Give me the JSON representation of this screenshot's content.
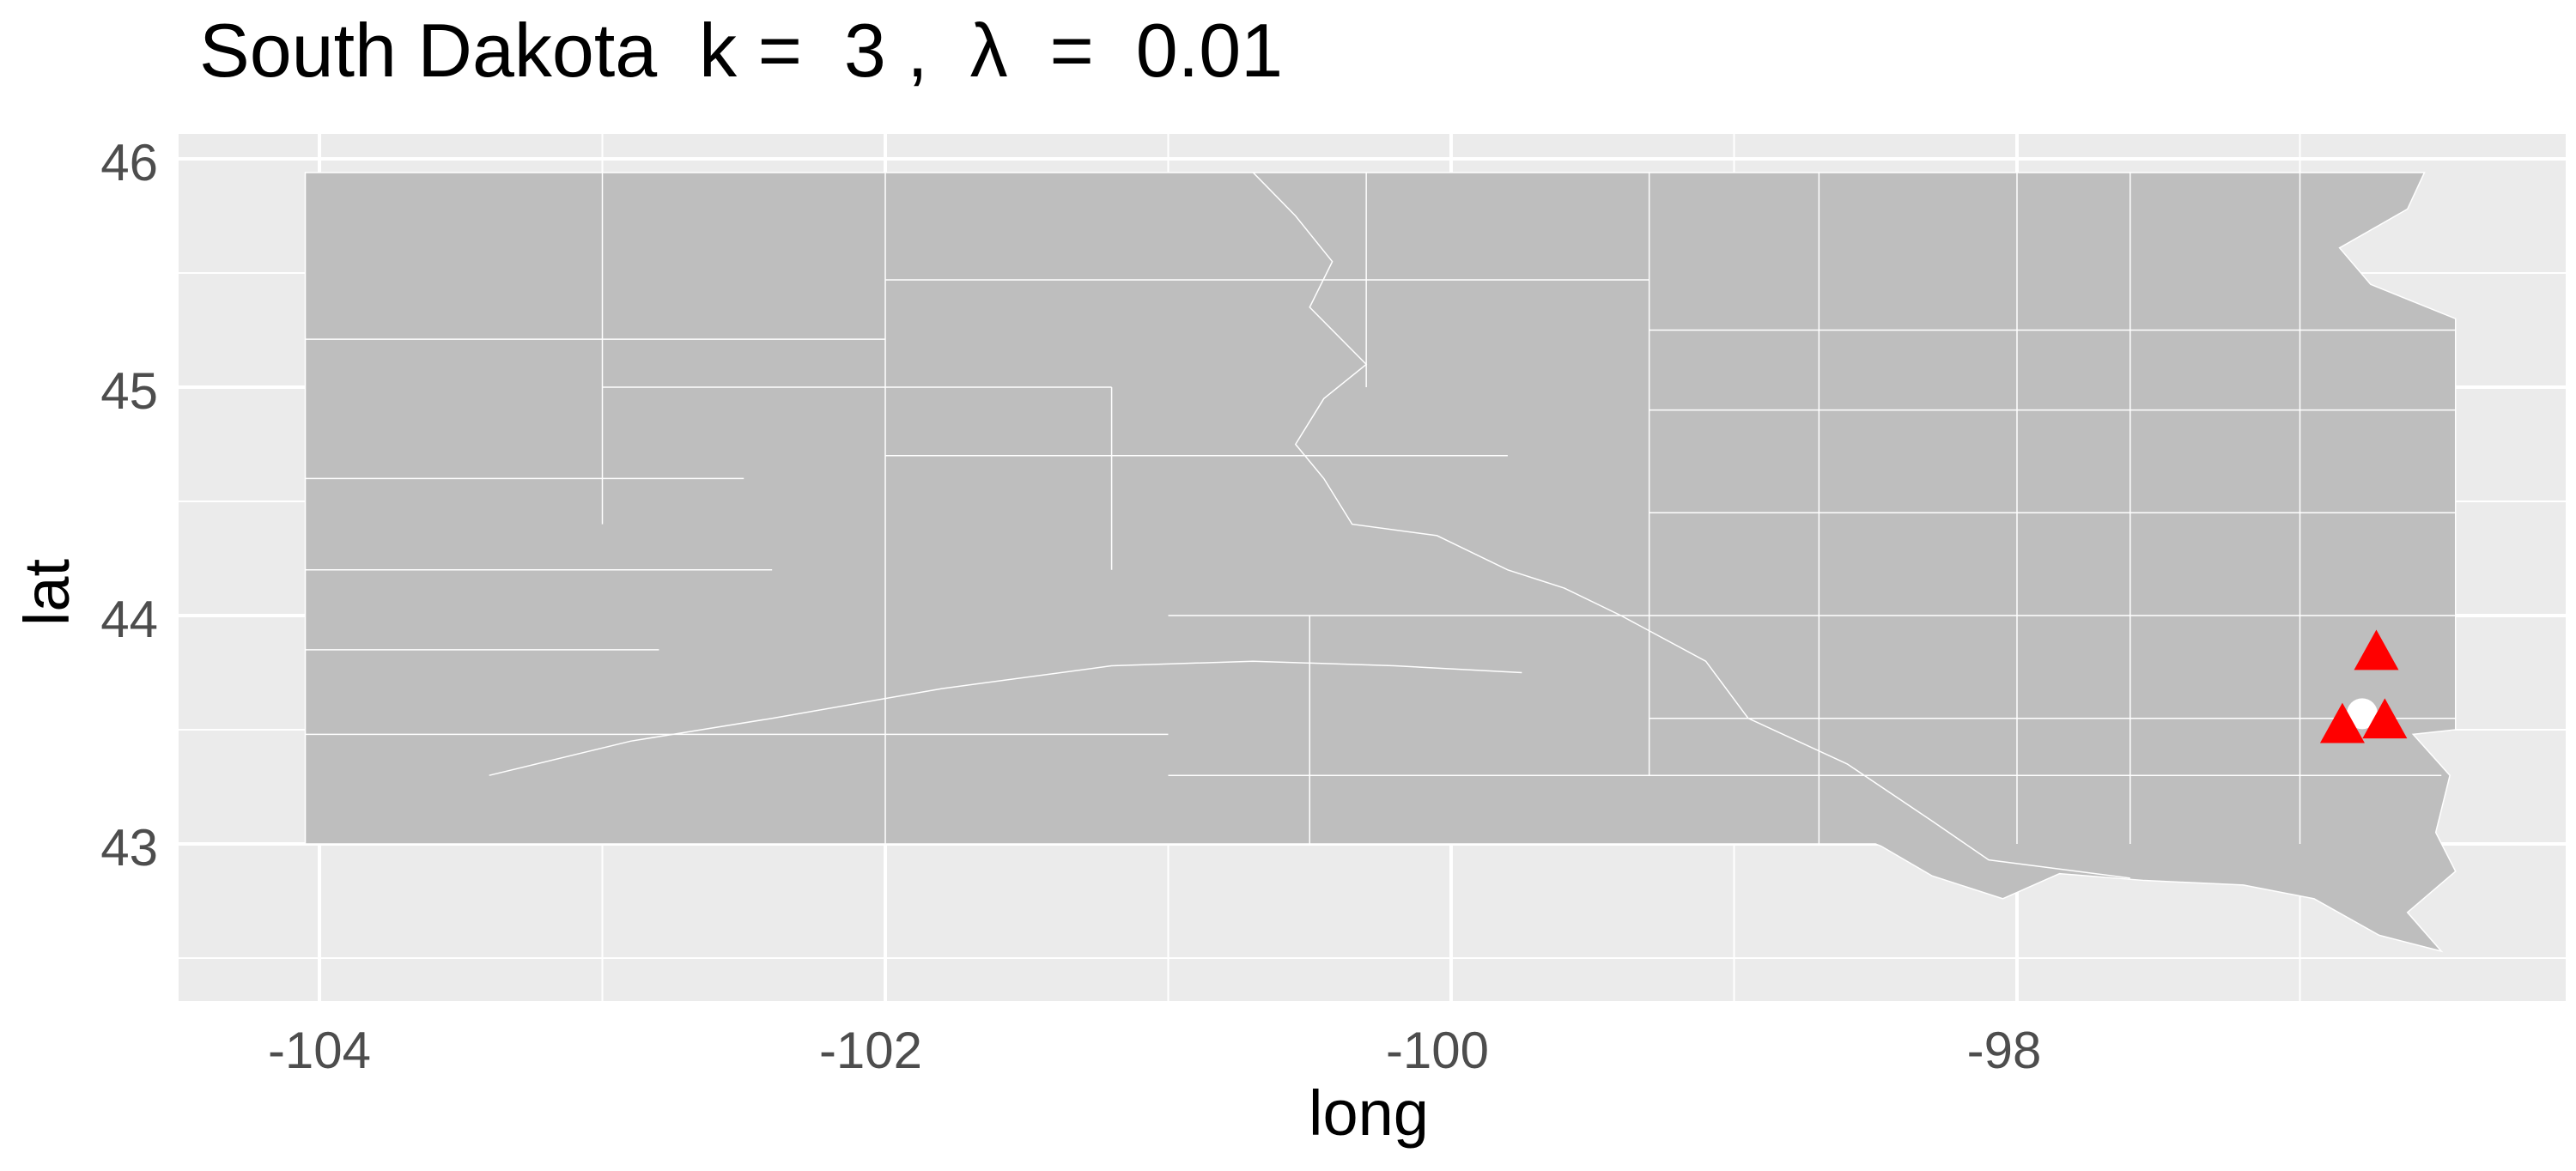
{
  "title": "South Dakota  k =  3 ,  λ  =  0.01",
  "axes": {
    "x": {
      "label": "long",
      "ticks": [
        "-104",
        "-102",
        "-100",
        "-98"
      ]
    },
    "y": {
      "label": "lat",
      "ticks": [
        "43",
        "44",
        "45",
        "46"
      ]
    }
  },
  "colors": {
    "panel": "#ebebeb",
    "state_fill": "#bebebe",
    "county_borders": "#ffffff",
    "markers": "#ff0000",
    "center": "#ffffff"
  },
  "markers": [
    {
      "shape": "triangle",
      "long": -96.73,
      "lat": 43.84
    },
    {
      "shape": "triangle",
      "long": -96.85,
      "lat": 43.52
    },
    {
      "shape": "triangle",
      "long": -96.7,
      "lat": 43.54
    }
  ],
  "center_point": {
    "shape": "circle",
    "long": -96.78,
    "lat": 43.57
  }
}
